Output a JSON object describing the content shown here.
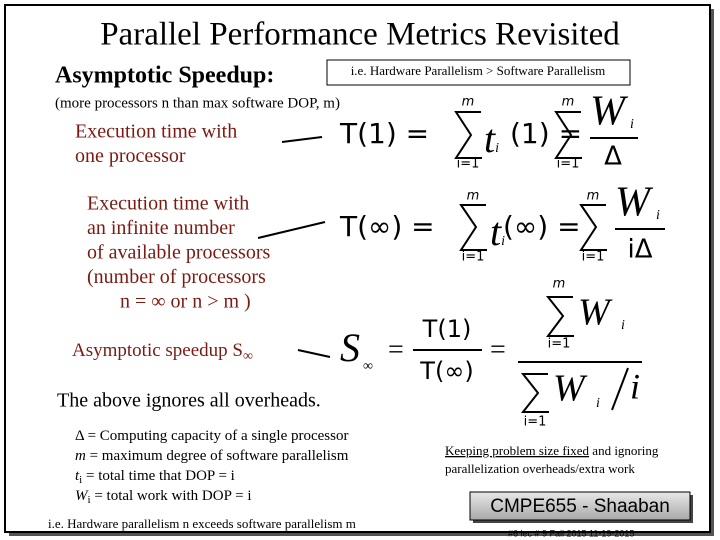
{
  "title": "Parallel Performance Metrics Revisited",
  "heading": "Asymptotic Speedup:",
  "note_box": "i.e. Hardware Parallelism > Software Parallelism",
  "subnote": "(more processors n than max software DOP, m)",
  "labels": [
    [
      "Execution time with",
      "one processor"
    ],
    [
      "Execution time with",
      "an infinite number",
      "of available processors",
      "(number of processors",
      "n = ∞ or  n > m )"
    ]
  ],
  "formulas": [
    {
      "lhs": "T(1) =",
      "sum_top": "m",
      "sum_bottom": "i=1",
      "term": "t",
      "term_sub": "i",
      "term_arg": "(1) =",
      "sum2_top": "m",
      "sum2_bottom": "i=1",
      "num": "W",
      "num_sub": "i",
      "den": "Δ"
    },
    {
      "lhs": "T(∞) =",
      "sum_top": "m",
      "sum_bottom": "i=1",
      "term": "t",
      "term_sub": "i",
      "term_arg": "(∞) =",
      "sum2_top": "m",
      "sum2_bottom": "i=1",
      "num": "W",
      "num_sub": "i",
      "den": "iΔ"
    }
  ],
  "speedup_label": {
    "text": "Asymptotic speedup S",
    "sub": "∞"
  },
  "speedup_formula": {
    "lhs": "S",
    "lhs_sub": "∞",
    "eq1": "=",
    "num": "T(1)",
    "den": "T(∞)",
    "eq2": "=",
    "top_sum_top": "m",
    "top_term": "W",
    "top_term_sub": "i",
    "top_sum_bottom": "i=1",
    "bottom_term": "W",
    "bottom_term_sub": "i",
    "bottom_div": "i",
    "bottom_sum_bottom": "i=1"
  },
  "overheads": "The above ignores all overheads.",
  "legend": [
    {
      "sym": "Δ",
      "text": " = Computing capacity of a single processor"
    },
    {
      "sym": "m",
      "text": " = maximum degree of software parallelism"
    },
    {
      "sym": "t",
      "sub": "i",
      "text": " =  total time that DOP = i"
    },
    {
      "sym": "W",
      "sub": "i",
      "text": "  =  total work with DOP = i"
    }
  ],
  "footer": "i.e.  Hardware parallelism n exceeds software parallelism  m",
  "right_note": {
    "underlined": "Keeping problem size fixed",
    "rest": " and ignoring",
    "line2": "parallelization overheads/extra work"
  },
  "badge": "CMPE655 - Shaaban",
  "footnote": "#6   lec # 9   Fall 2015  11-19-2015"
}
